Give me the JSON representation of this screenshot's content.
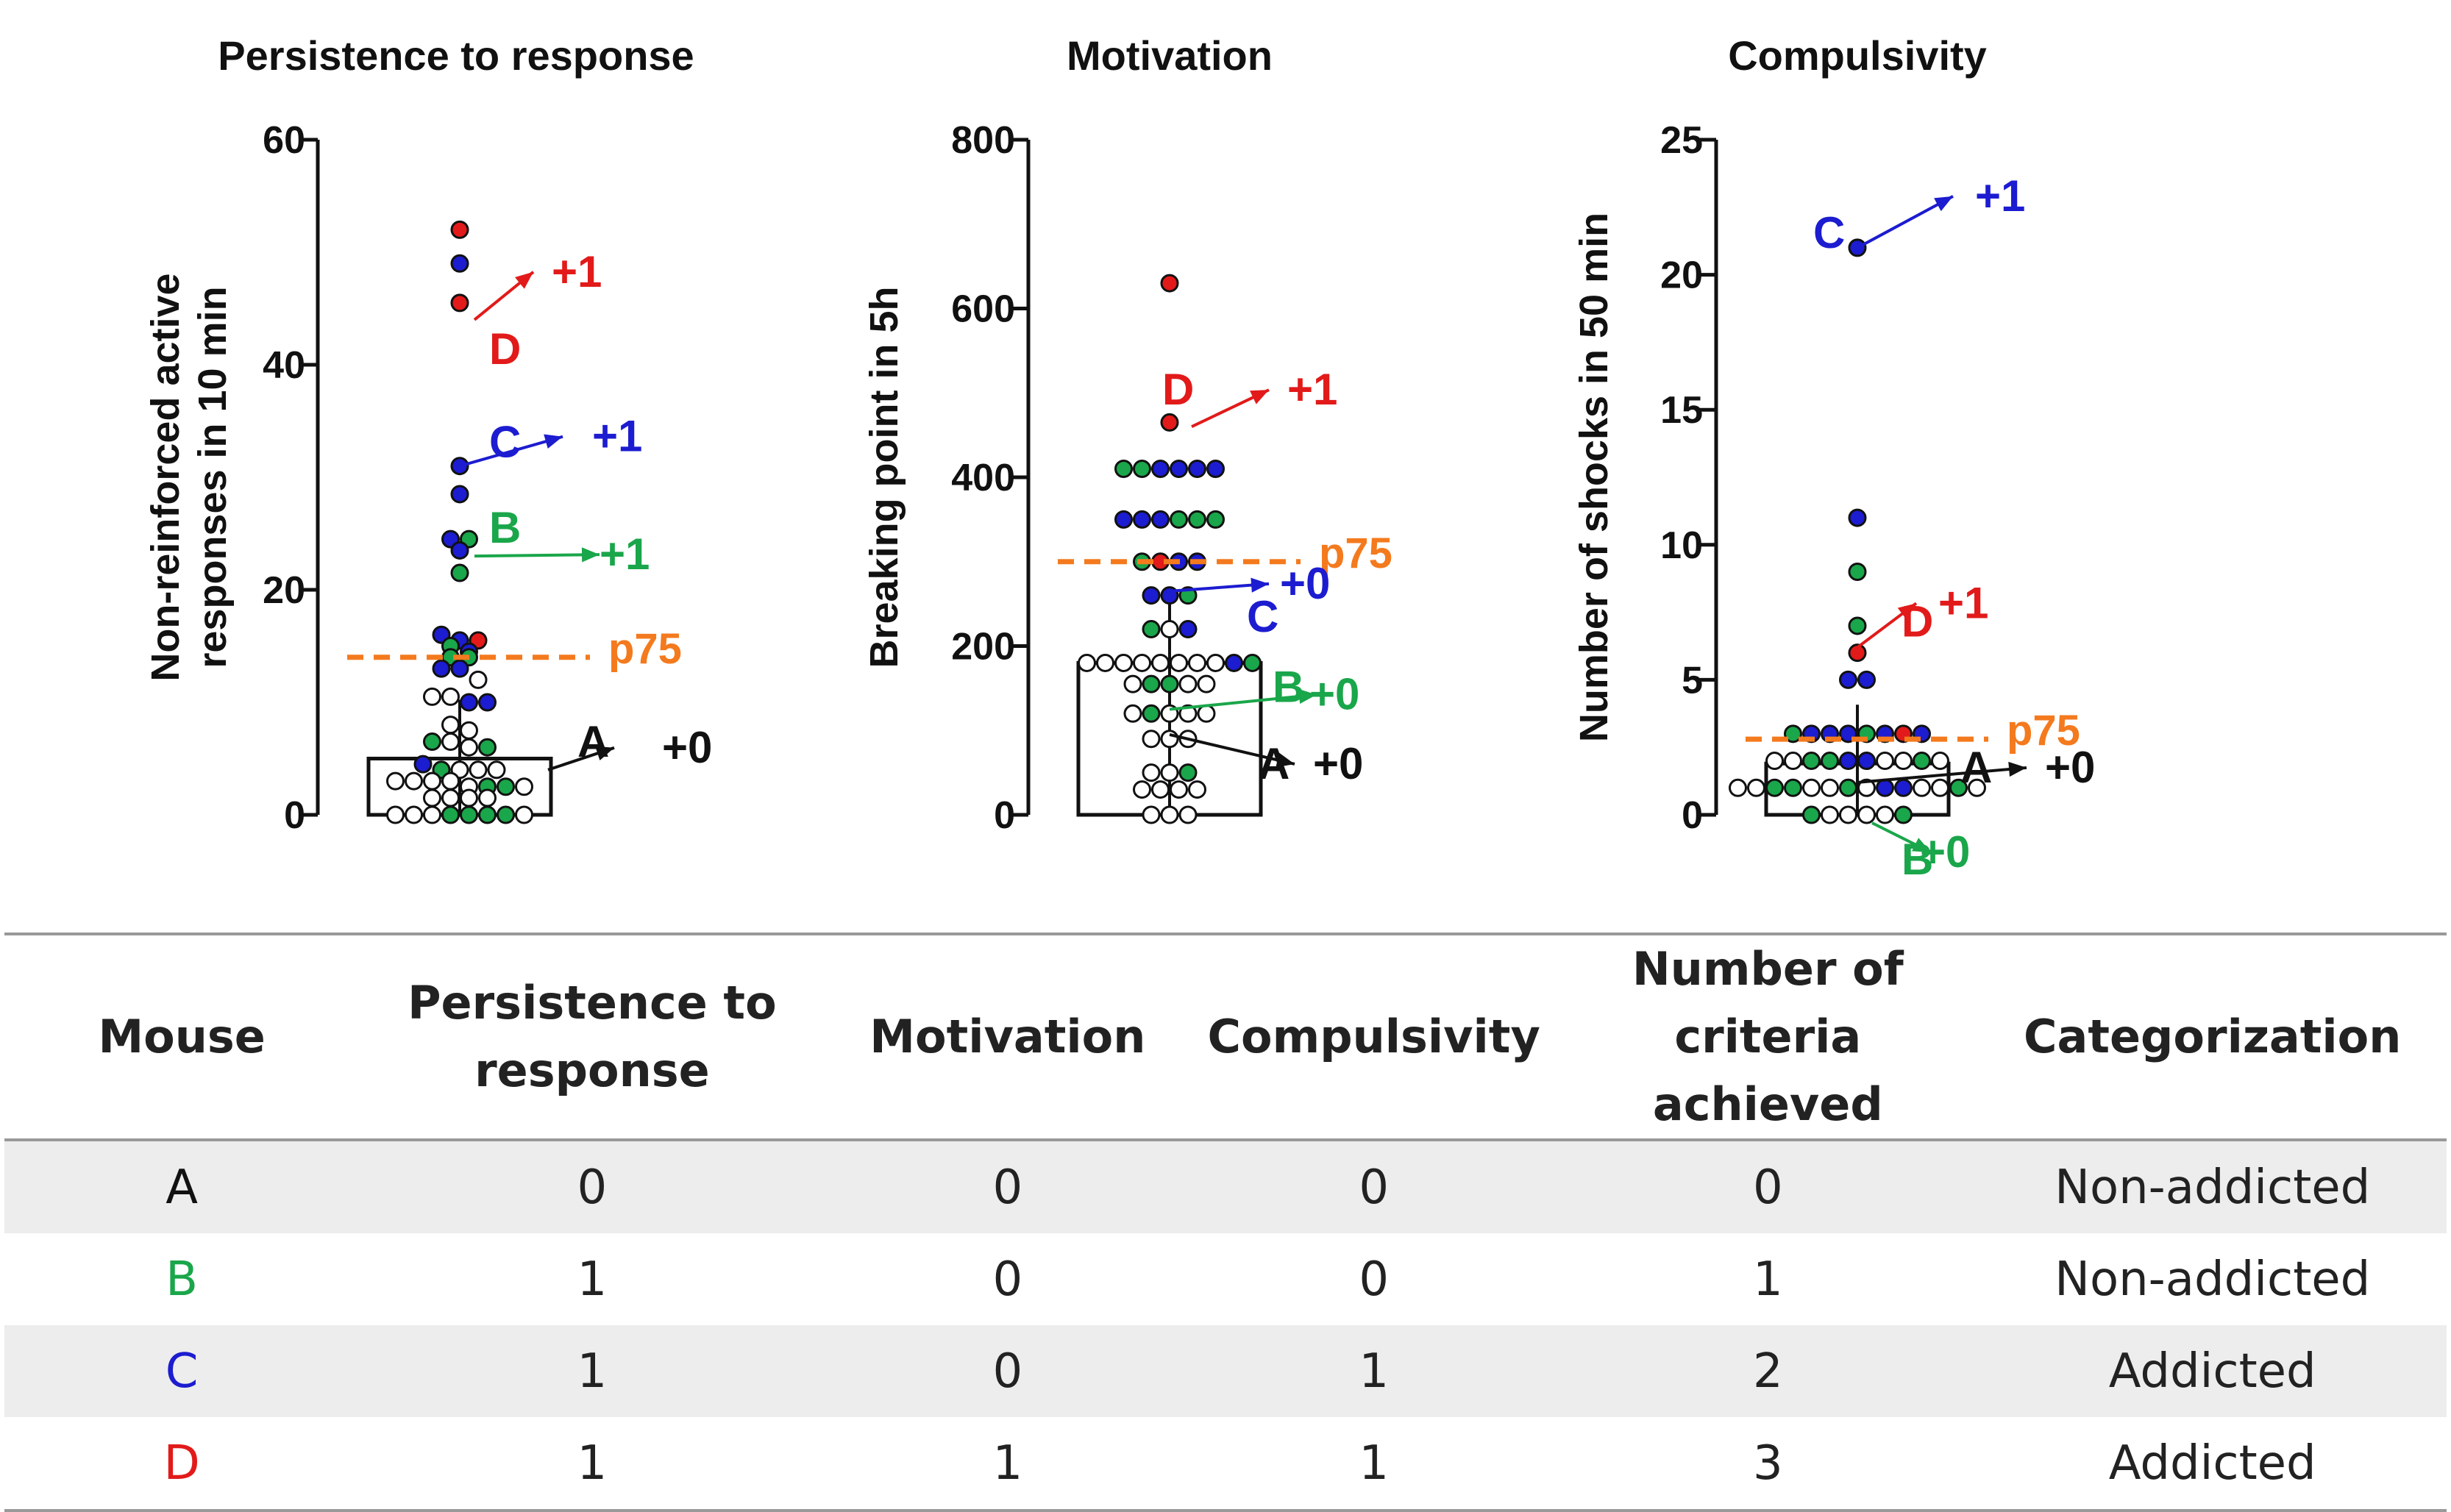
{
  "colors": {
    "green": "#1aa64a",
    "blue": "#1c1cd0",
    "red": "#e21a1a",
    "black": "#111111",
    "orange": "#f47a1e",
    "white_dot": "#ffffff"
  },
  "chart_data": [
    {
      "type": "scatter",
      "title": "Persistence to response",
      "ylabel_lines": [
        "Non-reinforced active",
        "responses in 10 min"
      ],
      "xlabel": "",
      "ylim": [
        0,
        60
      ],
      "yticks": [
        0,
        20,
        40,
        60
      ],
      "bar_mean": 5,
      "threshold": {
        "label": "p75",
        "value": 14
      },
      "points": [
        {
          "y": 52,
          "c": "red"
        },
        {
          "y": 49,
          "c": "blue"
        },
        {
          "y": 45.5,
          "c": "red"
        },
        {
          "y": 31,
          "c": "blue"
        },
        {
          "y": 28.5,
          "c": "blue"
        },
        {
          "y": 24.5,
          "c": "blue"
        },
        {
          "y": 23.5,
          "c": "blue"
        },
        {
          "y": 24.5,
          "c": "green"
        },
        {
          "y": 21.5,
          "c": "green"
        },
        {
          "y": 16,
          "c": "blue"
        },
        {
          "y": 15.5,
          "c": "blue"
        },
        {
          "y": 15.5,
          "c": "red"
        },
        {
          "y": 15,
          "c": "green"
        },
        {
          "y": 14,
          "c": "green"
        },
        {
          "y": 14,
          "c": "green"
        },
        {
          "y": 14.5,
          "c": "blue"
        },
        {
          "y": 13,
          "c": "blue"
        },
        {
          "y": 13,
          "c": "blue"
        },
        {
          "y": 12,
          "c": "white"
        },
        {
          "y": 10.5,
          "c": "white"
        },
        {
          "y": 10.5,
          "c": "white"
        },
        {
          "y": 10,
          "c": "blue"
        },
        {
          "y": 10,
          "c": "blue"
        },
        {
          "y": 8,
          "c": "white"
        },
        {
          "y": 7.5,
          "c": "white"
        },
        {
          "y": 6.5,
          "c": "green"
        },
        {
          "y": 6.5,
          "c": "white"
        },
        {
          "y": 6,
          "c": "white"
        },
        {
          "y": 6,
          "c": "green"
        },
        {
          "y": 4.5,
          "c": "blue"
        },
        {
          "y": 4,
          "c": "green"
        },
        {
          "y": 4,
          "c": "white"
        },
        {
          "y": 4,
          "c": "white"
        },
        {
          "y": 4,
          "c": "white"
        },
        {
          "y": 3,
          "c": "white"
        },
        {
          "y": 3,
          "c": "white"
        },
        {
          "y": 3,
          "c": "white"
        },
        {
          "y": 3,
          "c": "white"
        },
        {
          "y": 2.5,
          "c": "white"
        },
        {
          "y": 2.5,
          "c": "green"
        },
        {
          "y": 2.5,
          "c": "green"
        },
        {
          "y": 2.5,
          "c": "white"
        },
        {
          "y": 1.5,
          "c": "white"
        },
        {
          "y": 1.5,
          "c": "white"
        },
        {
          "y": 1.5,
          "c": "white"
        },
        {
          "y": 1.5,
          "c": "white"
        },
        {
          "y": 0,
          "c": "white"
        },
        {
          "y": 0,
          "c": "white"
        },
        {
          "y": 0,
          "c": "white"
        },
        {
          "y": 0,
          "c": "green"
        },
        {
          "y": 0,
          "c": "green"
        },
        {
          "y": 0,
          "c": "green"
        },
        {
          "y": 0,
          "c": "green"
        },
        {
          "y": 0,
          "c": "white"
        }
      ],
      "annotations": [
        {
          "letter": "A",
          "color": "black",
          "score": "+0",
          "y": 4
        },
        {
          "letter": "B",
          "color": "green",
          "score": "+1",
          "y": 23
        },
        {
          "letter": "C",
          "color": "blue",
          "score": "+1",
          "y": 31
        },
        {
          "letter": "D",
          "color": "red",
          "score": "+1",
          "y": 44
        }
      ]
    },
    {
      "type": "scatter",
      "title": "Motivation",
      "ylabel_lines": [
        "Breaking point in 5h"
      ],
      "xlabel": "",
      "ylim": [
        0,
        800
      ],
      "yticks": [
        0,
        200,
        400,
        600,
        800
      ],
      "bar_mean": 180,
      "threshold": {
        "label": "p75",
        "value": 300
      },
      "points": [
        {
          "y": 630,
          "c": "red"
        },
        {
          "y": 465,
          "c": "red"
        },
        {
          "y": 410,
          "c": "green"
        },
        {
          "y": 410,
          "c": "green"
        },
        {
          "y": 410,
          "c": "blue"
        },
        {
          "y": 410,
          "c": "blue"
        },
        {
          "y": 410,
          "c": "blue"
        },
        {
          "y": 410,
          "c": "blue"
        },
        {
          "y": 350,
          "c": "blue"
        },
        {
          "y": 350,
          "c": "blue"
        },
        {
          "y": 350,
          "c": "blue"
        },
        {
          "y": 350,
          "c": "green"
        },
        {
          "y": 350,
          "c": "green"
        },
        {
          "y": 350,
          "c": "green"
        },
        {
          "y": 300,
          "c": "green"
        },
        {
          "y": 300,
          "c": "red"
        },
        {
          "y": 300,
          "c": "blue"
        },
        {
          "y": 300,
          "c": "blue"
        },
        {
          "y": 260,
          "c": "blue"
        },
        {
          "y": 260,
          "c": "blue"
        },
        {
          "y": 260,
          "c": "green"
        },
        {
          "y": 220,
          "c": "green"
        },
        {
          "y": 220,
          "c": "white"
        },
        {
          "y": 220,
          "c": "blue"
        },
        {
          "y": 180,
          "c": "white"
        },
        {
          "y": 180,
          "c": "white"
        },
        {
          "y": 180,
          "c": "white"
        },
        {
          "y": 180,
          "c": "white"
        },
        {
          "y": 180,
          "c": "white"
        },
        {
          "y": 180,
          "c": "white"
        },
        {
          "y": 180,
          "c": "white"
        },
        {
          "y": 180,
          "c": "white"
        },
        {
          "y": 180,
          "c": "blue"
        },
        {
          "y": 180,
          "c": "green"
        },
        {
          "y": 155,
          "c": "white"
        },
        {
          "y": 155,
          "c": "green"
        },
        {
          "y": 155,
          "c": "green"
        },
        {
          "y": 155,
          "c": "white"
        },
        {
          "y": 155,
          "c": "white"
        },
        {
          "y": 120,
          "c": "white"
        },
        {
          "y": 120,
          "c": "green"
        },
        {
          "y": 120,
          "c": "white"
        },
        {
          "y": 120,
          "c": "white"
        },
        {
          "y": 120,
          "c": "white"
        },
        {
          "y": 90,
          "c": "white"
        },
        {
          "y": 90,
          "c": "white"
        },
        {
          "y": 90,
          "c": "white"
        },
        {
          "y": 50,
          "c": "white"
        },
        {
          "y": 50,
          "c": "white"
        },
        {
          "y": 50,
          "c": "green"
        },
        {
          "y": 30,
          "c": "white"
        },
        {
          "y": 30,
          "c": "white"
        },
        {
          "y": 30,
          "c": "white"
        },
        {
          "y": 30,
          "c": "white"
        },
        {
          "y": 0,
          "c": "white"
        },
        {
          "y": 0,
          "c": "white"
        },
        {
          "y": 0,
          "c": "white"
        }
      ],
      "annotations": [
        {
          "letter": "A",
          "color": "black",
          "score": "+0",
          "y": 95
        },
        {
          "letter": "B",
          "color": "green",
          "score": "+0",
          "y": 125
        },
        {
          "letter": "C",
          "color": "blue",
          "score": "+0",
          "y": 265
        },
        {
          "letter": "D",
          "color": "red",
          "score": "+1",
          "y": 460
        }
      ]
    },
    {
      "type": "scatter",
      "title": "Compulsivity",
      "ylabel_lines": [
        "Number of shocks in 50 min"
      ],
      "xlabel": "",
      "ylim": [
        0,
        25
      ],
      "yticks": [
        0,
        5,
        10,
        15,
        20,
        25
      ],
      "bar_mean": 1.9,
      "threshold": {
        "label": "p75",
        "value": 2.8
      },
      "points": [
        {
          "y": 21,
          "c": "blue"
        },
        {
          "y": 11,
          "c": "blue"
        },
        {
          "y": 9,
          "c": "green"
        },
        {
          "y": 7,
          "c": "green"
        },
        {
          "y": 6,
          "c": "red"
        },
        {
          "y": 5,
          "c": "blue"
        },
        {
          "y": 5,
          "c": "blue"
        },
        {
          "y": 3,
          "c": "green"
        },
        {
          "y": 3,
          "c": "blue"
        },
        {
          "y": 3,
          "c": "blue"
        },
        {
          "y": 3,
          "c": "blue"
        },
        {
          "y": 3,
          "c": "green"
        },
        {
          "y": 3,
          "c": "blue"
        },
        {
          "y": 3,
          "c": "red"
        },
        {
          "y": 3,
          "c": "blue"
        },
        {
          "y": 2,
          "c": "white"
        },
        {
          "y": 2,
          "c": "white"
        },
        {
          "y": 2,
          "c": "green"
        },
        {
          "y": 2,
          "c": "green"
        },
        {
          "y": 2,
          "c": "blue"
        },
        {
          "y": 2,
          "c": "blue"
        },
        {
          "y": 2,
          "c": "white"
        },
        {
          "y": 2,
          "c": "white"
        },
        {
          "y": 2,
          "c": "green"
        },
        {
          "y": 2,
          "c": "white"
        },
        {
          "y": 1,
          "c": "white"
        },
        {
          "y": 1,
          "c": "white"
        },
        {
          "y": 1,
          "c": "green"
        },
        {
          "y": 1,
          "c": "green"
        },
        {
          "y": 1,
          "c": "white"
        },
        {
          "y": 1,
          "c": "white"
        },
        {
          "y": 1,
          "c": "green"
        },
        {
          "y": 1,
          "c": "white"
        },
        {
          "y": 1,
          "c": "blue"
        },
        {
          "y": 1,
          "c": "blue"
        },
        {
          "y": 1,
          "c": "white"
        },
        {
          "y": 1,
          "c": "white"
        },
        {
          "y": 1,
          "c": "green"
        },
        {
          "y": 1,
          "c": "white"
        },
        {
          "y": 0,
          "c": "green"
        },
        {
          "y": 0,
          "c": "white"
        },
        {
          "y": 0,
          "c": "white"
        },
        {
          "y": 0,
          "c": "white"
        },
        {
          "y": 0,
          "c": "white"
        },
        {
          "y": 0,
          "c": "green"
        }
      ],
      "annotations": [
        {
          "letter": "A",
          "color": "black",
          "score": "+0",
          "y": 1.2
        },
        {
          "letter": "B",
          "color": "green",
          "score": "+0",
          "y": -0.3
        },
        {
          "letter": "C",
          "color": "blue",
          "score": "+1",
          "y": 21
        },
        {
          "letter": "D",
          "color": "red",
          "score": "+1",
          "y": 6.2
        }
      ]
    }
  ],
  "table": {
    "headers": [
      "Mouse",
      "Persistence to response",
      "Motivation",
      "Compulsivity",
      "Number of criteria achieved",
      "Categorization"
    ],
    "rows": [
      {
        "mouse": "A",
        "color": "#111111",
        "persistence": "0",
        "motivation": "0",
        "compulsivity": "0",
        "criteria": "0",
        "category": "Non-addicted"
      },
      {
        "mouse": "B",
        "color": "#1aa64a",
        "persistence": "1",
        "motivation": "0",
        "compulsivity": "0",
        "criteria": "1",
        "category": "Non-addicted"
      },
      {
        "mouse": "C",
        "color": "#1c1cd0",
        "persistence": "1",
        "motivation": "0",
        "compulsivity": "1",
        "criteria": "2",
        "category": "Addicted"
      },
      {
        "mouse": "D",
        "color": "#e21a1a",
        "persistence": "1",
        "motivation": "1",
        "compulsivity": "1",
        "criteria": "3",
        "category": "Addicted"
      }
    ]
  }
}
